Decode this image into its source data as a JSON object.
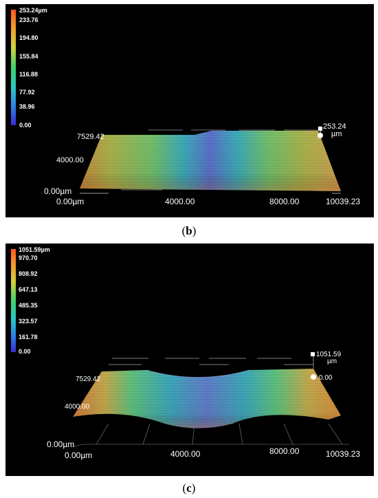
{
  "panels": [
    {
      "id": "b",
      "caption_letter": "b",
      "colorbar": {
        "max_label": "253.24µm",
        "ticks": [
          "233.76",
          "194.80",
          "155.84",
          "116.88",
          "77.92",
          "38.96",
          "0.00"
        ]
      },
      "axes": {
        "z_label": "253.24",
        "z_unit": "µm",
        "y_max": "7529.42",
        "y_mid": "4000.00",
        "origin_z": "0.00µm",
        "origin_x": "0.00µm",
        "x_mid": "4000.00",
        "x_2": "8000.00",
        "x_max": "10039.23"
      }
    },
    {
      "id": "c",
      "caption_letter": "c",
      "colorbar": {
        "max_label": "1051.59µm",
        "ticks": [
          "970.70",
          "808.92",
          "647.13",
          "485.35",
          "323.57",
          "161.78",
          "0.00"
        ]
      },
      "axes": {
        "z_label": "1051.59",
        "z_unit": "µm",
        "z_zero": "0.00",
        "y_max": "7529.42",
        "y_mid": "4000.00",
        "origin_z": "0.00µm",
        "origin_x": "0.00µm",
        "x_mid": "4000.00",
        "x_2": "8000.00",
        "x_max": "10039.23"
      }
    }
  ]
}
